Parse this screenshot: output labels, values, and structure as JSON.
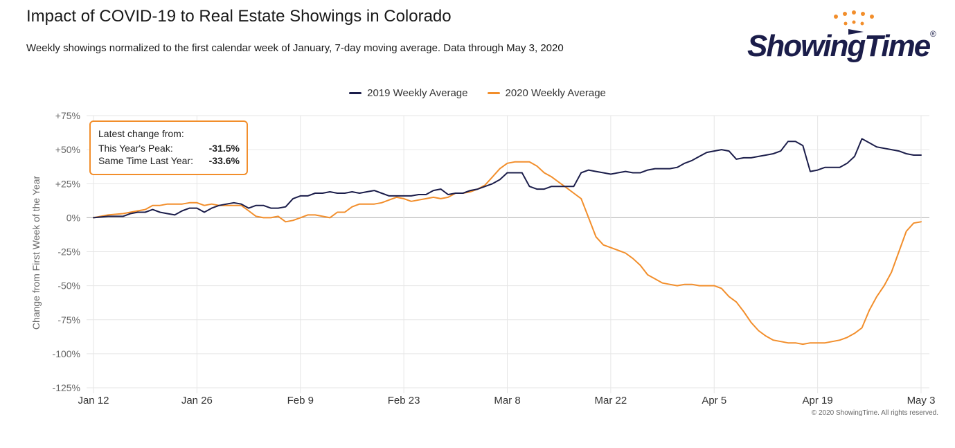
{
  "header": {
    "title": "Impact of COVID-19 to Real Estate Showings in Colorado",
    "subtitle": "Weekly showings normalized to the first calendar week of January, 7-day moving average. Data through May 3, 2020"
  },
  "logo": {
    "text": "ShowingTime",
    "registered": "®"
  },
  "info_box": {
    "heading": "Latest change from:",
    "rows": [
      {
        "label": "This Year's Peak:",
        "value": "-31.5%"
      },
      {
        "label": "Same Time Last Year:",
        "value": "-33.6%"
      }
    ]
  },
  "credit": "© 2020 ShowingTime. All rights reserved.",
  "colors": {
    "series_2019": "#1b1d4a",
    "series_2020": "#f28e2b",
    "grid": "#e6e6e6",
    "zero_line": "#b3b3b3"
  },
  "chart_data": {
    "type": "line",
    "title": "Impact of COVID-19 to Real Estate Showings in Colorado",
    "ylabel": "Change from First Week of the Year",
    "xlabel": "",
    "ylim": [
      -125,
      75
    ],
    "y_ticks": [
      75,
      50,
      25,
      0,
      -25,
      -50,
      -75,
      -100,
      -125
    ],
    "y_tick_labels": [
      "+75%",
      "+50%",
      "+25%",
      "0%",
      "-25%",
      "-50%",
      "-75%",
      "-100%",
      "-125%"
    ],
    "x_range_days": [
      0,
      112
    ],
    "x_ticks": [
      {
        "label": "Jan 12",
        "day": 0
      },
      {
        "label": "Jan 26",
        "day": 14
      },
      {
        "label": "Feb 9",
        "day": 28
      },
      {
        "label": "Feb 23",
        "day": 42
      },
      {
        "label": "Mar 8",
        "day": 56
      },
      {
        "label": "Mar 22",
        "day": 70
      },
      {
        "label": "Apr 5",
        "day": 84
      },
      {
        "label": "Apr 19",
        "day": 98
      },
      {
        "label": "May 3",
        "day": 112
      }
    ],
    "legend_position": "top-center",
    "grid": true,
    "series": [
      {
        "name": "2019 Weekly Average",
        "points": [
          [
            0,
            0
          ],
          [
            2,
            1
          ],
          [
            4,
            1
          ],
          [
            5,
            3
          ],
          [
            6,
            4
          ],
          [
            7,
            4
          ],
          [
            8,
            6
          ],
          [
            9,
            4
          ],
          [
            10,
            3
          ],
          [
            11,
            2
          ],
          [
            12,
            5
          ],
          [
            13,
            7
          ],
          [
            14,
            7
          ],
          [
            15,
            4
          ],
          [
            16,
            7
          ],
          [
            17,
            9
          ],
          [
            18,
            10
          ],
          [
            19,
            11
          ],
          [
            20,
            10
          ],
          [
            21,
            7
          ],
          [
            22,
            9
          ],
          [
            23,
            9
          ],
          [
            24,
            7
          ],
          [
            25,
            7
          ],
          [
            26,
            8
          ],
          [
            27,
            14
          ],
          [
            28,
            16
          ],
          [
            29,
            16
          ],
          [
            30,
            18
          ],
          [
            31,
            18
          ],
          [
            32,
            19
          ],
          [
            33,
            18
          ],
          [
            34,
            18
          ],
          [
            35,
            19
          ],
          [
            36,
            18
          ],
          [
            37,
            19
          ],
          [
            38,
            20
          ],
          [
            39,
            18
          ],
          [
            40,
            16
          ],
          [
            41,
            16
          ],
          [
            42,
            16
          ],
          [
            43,
            16
          ],
          [
            44,
            17
          ],
          [
            45,
            17
          ],
          [
            46,
            20
          ],
          [
            47,
            21
          ],
          [
            48,
            17
          ],
          [
            49,
            18
          ],
          [
            50,
            18
          ],
          [
            51,
            20
          ],
          [
            52,
            21
          ],
          [
            53,
            23
          ],
          [
            54,
            25
          ],
          [
            55,
            28
          ],
          [
            56,
            33
          ],
          [
            57,
            33
          ],
          [
            58,
            33
          ],
          [
            59,
            23
          ],
          [
            60,
            21
          ],
          [
            61,
            21
          ],
          [
            62,
            23
          ],
          [
            63,
            23
          ],
          [
            64,
            23
          ],
          [
            65,
            23
          ],
          [
            66,
            33
          ],
          [
            67,
            35
          ],
          [
            68,
            34
          ],
          [
            69,
            33
          ],
          [
            70,
            32
          ],
          [
            71,
            33
          ],
          [
            72,
            34
          ],
          [
            73,
            33
          ],
          [
            74,
            33
          ],
          [
            75,
            35
          ],
          [
            76,
            36
          ],
          [
            77,
            36
          ],
          [
            78,
            36
          ],
          [
            79,
            37
          ],
          [
            80,
            40
          ],
          [
            81,
            42
          ],
          [
            82,
            45
          ],
          [
            83,
            48
          ],
          [
            84,
            49
          ],
          [
            85,
            50
          ],
          [
            86,
            49
          ],
          [
            87,
            43
          ],
          [
            88,
            44
          ],
          [
            89,
            44
          ],
          [
            90,
            45
          ],
          [
            91,
            46
          ],
          [
            92,
            47
          ],
          [
            93,
            49
          ],
          [
            94,
            56
          ],
          [
            95,
            56
          ],
          [
            96,
            53
          ],
          [
            97,
            34
          ],
          [
            98,
            35
          ],
          [
            99,
            37
          ],
          [
            100,
            37
          ],
          [
            101,
            37
          ],
          [
            102,
            40
          ],
          [
            103,
            45
          ],
          [
            104,
            58
          ],
          [
            105,
            55
          ],
          [
            106,
            52
          ],
          [
            107,
            51
          ],
          [
            108,
            50
          ],
          [
            109,
            49
          ],
          [
            110,
            47
          ],
          [
            111,
            46
          ],
          [
            112,
            46
          ]
        ]
      },
      {
        "name": "2020 Weekly Average",
        "points": [
          [
            0,
            0
          ],
          [
            2,
            2
          ],
          [
            4,
            3
          ],
          [
            5,
            4
          ],
          [
            6,
            5
          ],
          [
            7,
            6
          ],
          [
            8,
            9
          ],
          [
            9,
            9
          ],
          [
            10,
            10
          ],
          [
            11,
            10
          ],
          [
            12,
            10
          ],
          [
            13,
            11
          ],
          [
            14,
            11
          ],
          [
            15,
            9
          ],
          [
            16,
            10
          ],
          [
            17,
            9
          ],
          [
            18,
            9
          ],
          [
            19,
            9
          ],
          [
            20,
            9
          ],
          [
            21,
            5
          ],
          [
            22,
            1
          ],
          [
            23,
            0
          ],
          [
            24,
            0
          ],
          [
            25,
            1
          ],
          [
            26,
            -3
          ],
          [
            27,
            -2
          ],
          [
            28,
            0
          ],
          [
            29,
            2
          ],
          [
            30,
            2
          ],
          [
            31,
            1
          ],
          [
            32,
            0
          ],
          [
            33,
            4
          ],
          [
            34,
            4
          ],
          [
            35,
            8
          ],
          [
            36,
            10
          ],
          [
            37,
            10
          ],
          [
            38,
            10
          ],
          [
            39,
            11
          ],
          [
            40,
            13
          ],
          [
            41,
            15
          ],
          [
            42,
            14
          ],
          [
            43,
            12
          ],
          [
            44,
            13
          ],
          [
            45,
            14
          ],
          [
            46,
            15
          ],
          [
            47,
            14
          ],
          [
            48,
            15
          ],
          [
            49,
            18
          ],
          [
            50,
            18
          ],
          [
            51,
            19
          ],
          [
            52,
            21
          ],
          [
            53,
            24
          ],
          [
            54,
            30
          ],
          [
            55,
            36
          ],
          [
            56,
            40
          ],
          [
            57,
            41
          ],
          [
            58,
            41
          ],
          [
            59,
            41
          ],
          [
            60,
            38
          ],
          [
            61,
            33
          ],
          [
            62,
            30
          ],
          [
            63,
            26
          ],
          [
            64,
            22
          ],
          [
            65,
            18
          ],
          [
            66,
            14
          ],
          [
            67,
            0
          ],
          [
            68,
            -14
          ],
          [
            69,
            -20
          ],
          [
            70,
            -22
          ],
          [
            71,
            -24
          ],
          [
            72,
            -26
          ],
          [
            73,
            -30
          ],
          [
            74,
            -35
          ],
          [
            75,
            -42
          ],
          [
            76,
            -45
          ],
          [
            77,
            -48
          ],
          [
            78,
            -49
          ],
          [
            79,
            -50
          ],
          [
            80,
            -49
          ],
          [
            81,
            -49
          ],
          [
            82,
            -50
          ],
          [
            83,
            -50
          ],
          [
            84,
            -50
          ],
          [
            85,
            -52
          ],
          [
            86,
            -58
          ],
          [
            87,
            -62
          ],
          [
            88,
            -69
          ],
          [
            89,
            -77
          ],
          [
            90,
            -83
          ],
          [
            91,
            -87
          ],
          [
            92,
            -90
          ],
          [
            93,
            -91
          ],
          [
            94,
            -92
          ],
          [
            95,
            -92
          ],
          [
            96,
            -93
          ],
          [
            97,
            -92
          ],
          [
            98,
            -92
          ],
          [
            99,
            -92
          ],
          [
            100,
            -91
          ],
          [
            101,
            -90
          ],
          [
            102,
            -88
          ],
          [
            103,
            -85
          ],
          [
            104,
            -81
          ],
          [
            105,
            -68
          ],
          [
            106,
            -58
          ],
          [
            107,
            -50
          ],
          [
            108,
            -40
          ],
          [
            109,
            -25
          ],
          [
            110,
            -10
          ],
          [
            111,
            -4
          ],
          [
            112,
            -3
          ]
        ]
      }
    ]
  }
}
